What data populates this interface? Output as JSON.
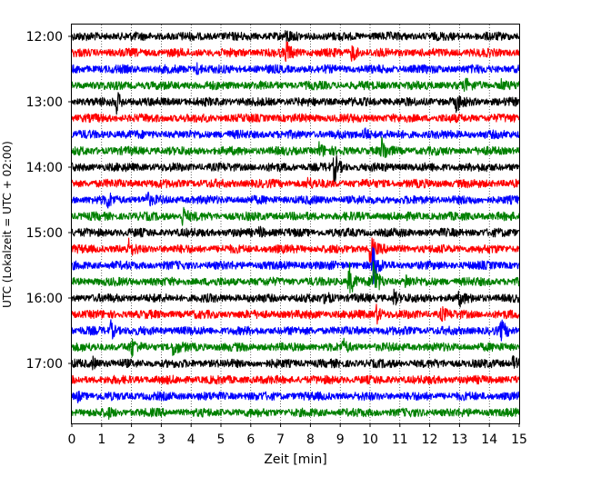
{
  "chart_data": {
    "type": "line",
    "title": "",
    "xlabel": "Zeit  [min]",
    "ylabel": "UTC (Lokalzeit = UTC + 02:00)",
    "xlim": [
      0,
      15
    ],
    "x_ticks": [
      0,
      1,
      2,
      3,
      4,
      5,
      6,
      7,
      8,
      9,
      10,
      11,
      12,
      13,
      14,
      15
    ],
    "x_tick_labels": [
      "0",
      "1",
      "2",
      "3",
      "4",
      "5",
      "6",
      "7",
      "8",
      "9",
      "10",
      "11",
      "12",
      "13",
      "14",
      "15"
    ],
    "y_tick_labels": [
      "12:00",
      "13:00",
      "14:00",
      "15:00",
      "16:00",
      "17:00"
    ],
    "y_tick_rows": [
      0,
      4,
      8,
      12,
      16,
      20
    ],
    "grid": "vertical dotted lines at each minute",
    "minutes_per_row": 15,
    "row_count": 24,
    "colors_cycle": [
      "#000000",
      "#ff0000",
      "#0000ff",
      "#008000"
    ],
    "rows": [
      {
        "start": "12:00",
        "color": "#000000",
        "events": [
          {
            "t": 7.2,
            "amp": 0.6
          }
        ]
      },
      {
        "start": "12:15",
        "color": "#ff0000",
        "events": [
          {
            "t": 7.2,
            "amp": 1.3
          },
          {
            "t": 9.4,
            "amp": 1.1
          }
        ]
      },
      {
        "start": "12:30",
        "color": "#0000ff",
        "events": [
          {
            "t": 4.2,
            "amp": 0.6
          }
        ]
      },
      {
        "start": "12:45",
        "color": "#008000",
        "events": [
          {
            "t": 13.2,
            "amp": 0.6
          },
          {
            "t": 14.4,
            "amp": 0.5
          }
        ]
      },
      {
        "start": "13:00",
        "color": "#000000",
        "events": [
          {
            "t": 1.5,
            "amp": 1.2
          },
          {
            "t": 12.9,
            "amp": 1.0
          }
        ]
      },
      {
        "start": "13:15",
        "color": "#ff0000",
        "events": []
      },
      {
        "start": "13:30",
        "color": "#0000ff",
        "events": [
          {
            "t": 9.8,
            "amp": 1.0
          }
        ]
      },
      {
        "start": "13:45",
        "color": "#008000",
        "events": [
          {
            "t": 8.3,
            "amp": 0.9
          },
          {
            "t": 10.4,
            "amp": 1.5
          }
        ]
      },
      {
        "start": "14:00",
        "color": "#000000",
        "events": [
          {
            "t": 8.8,
            "amp": 1.8
          }
        ]
      },
      {
        "start": "14:15",
        "color": "#ff0000",
        "events": [
          {
            "t": 7.9,
            "amp": 0.5
          }
        ]
      },
      {
        "start": "14:30",
        "color": "#0000ff",
        "events": [
          {
            "t": 1.2,
            "amp": 0.9
          },
          {
            "t": 2.5,
            "amp": 0.8
          }
        ]
      },
      {
        "start": "14:45",
        "color": "#008000",
        "events": [
          {
            "t": 3.7,
            "amp": 1.2
          }
        ]
      },
      {
        "start": "15:00",
        "color": "#000000",
        "events": [
          {
            "t": 6.3,
            "amp": 0.6
          }
        ]
      },
      {
        "start": "15:15",
        "color": "#ff0000",
        "events": [
          {
            "t": 1.9,
            "amp": 0.9
          },
          {
            "t": 10.0,
            "amp": 2.0
          }
        ]
      },
      {
        "start": "15:30",
        "color": "#0000ff",
        "events": [
          {
            "t": 10.1,
            "amp": 2.5
          }
        ]
      },
      {
        "start": "15:45",
        "color": "#008000",
        "events": [
          {
            "t": 9.3,
            "amp": 2.2
          },
          {
            "t": 10.1,
            "amp": 3.0
          },
          {
            "t": 11.2,
            "amp": 0.8
          }
        ]
      },
      {
        "start": "16:00",
        "color": "#000000",
        "events": [
          {
            "t": 8.5,
            "amp": 0.9
          },
          {
            "t": 10.8,
            "amp": 0.8
          },
          {
            "t": 13.0,
            "amp": 0.7
          }
        ]
      },
      {
        "start": "16:15",
        "color": "#ff0000",
        "events": [
          {
            "t": 10.2,
            "amp": 1.2
          },
          {
            "t": 12.4,
            "amp": 0.8
          }
        ]
      },
      {
        "start": "16:30",
        "color": "#0000ff",
        "events": [
          {
            "t": 1.3,
            "amp": 1.1
          },
          {
            "t": 14.4,
            "amp": 1.1
          }
        ]
      },
      {
        "start": "16:45",
        "color": "#008000",
        "events": [
          {
            "t": 2.0,
            "amp": 1.0
          },
          {
            "t": 3.4,
            "amp": 1.1
          },
          {
            "t": 9.1,
            "amp": 0.7
          }
        ]
      },
      {
        "start": "17:00",
        "color": "#000000",
        "events": [
          {
            "t": 0.7,
            "amp": 0.6
          },
          {
            "t": 14.8,
            "amp": 0.7
          }
        ]
      },
      {
        "start": "17:15",
        "color": "#ff0000",
        "events": []
      },
      {
        "start": "17:30",
        "color": "#0000ff",
        "events": [
          {
            "t": 0.2,
            "amp": 0.5
          }
        ]
      },
      {
        "start": "17:45",
        "color": "#008000",
        "events": [
          {
            "t": 1.2,
            "amp": 0.5
          }
        ]
      }
    ]
  }
}
